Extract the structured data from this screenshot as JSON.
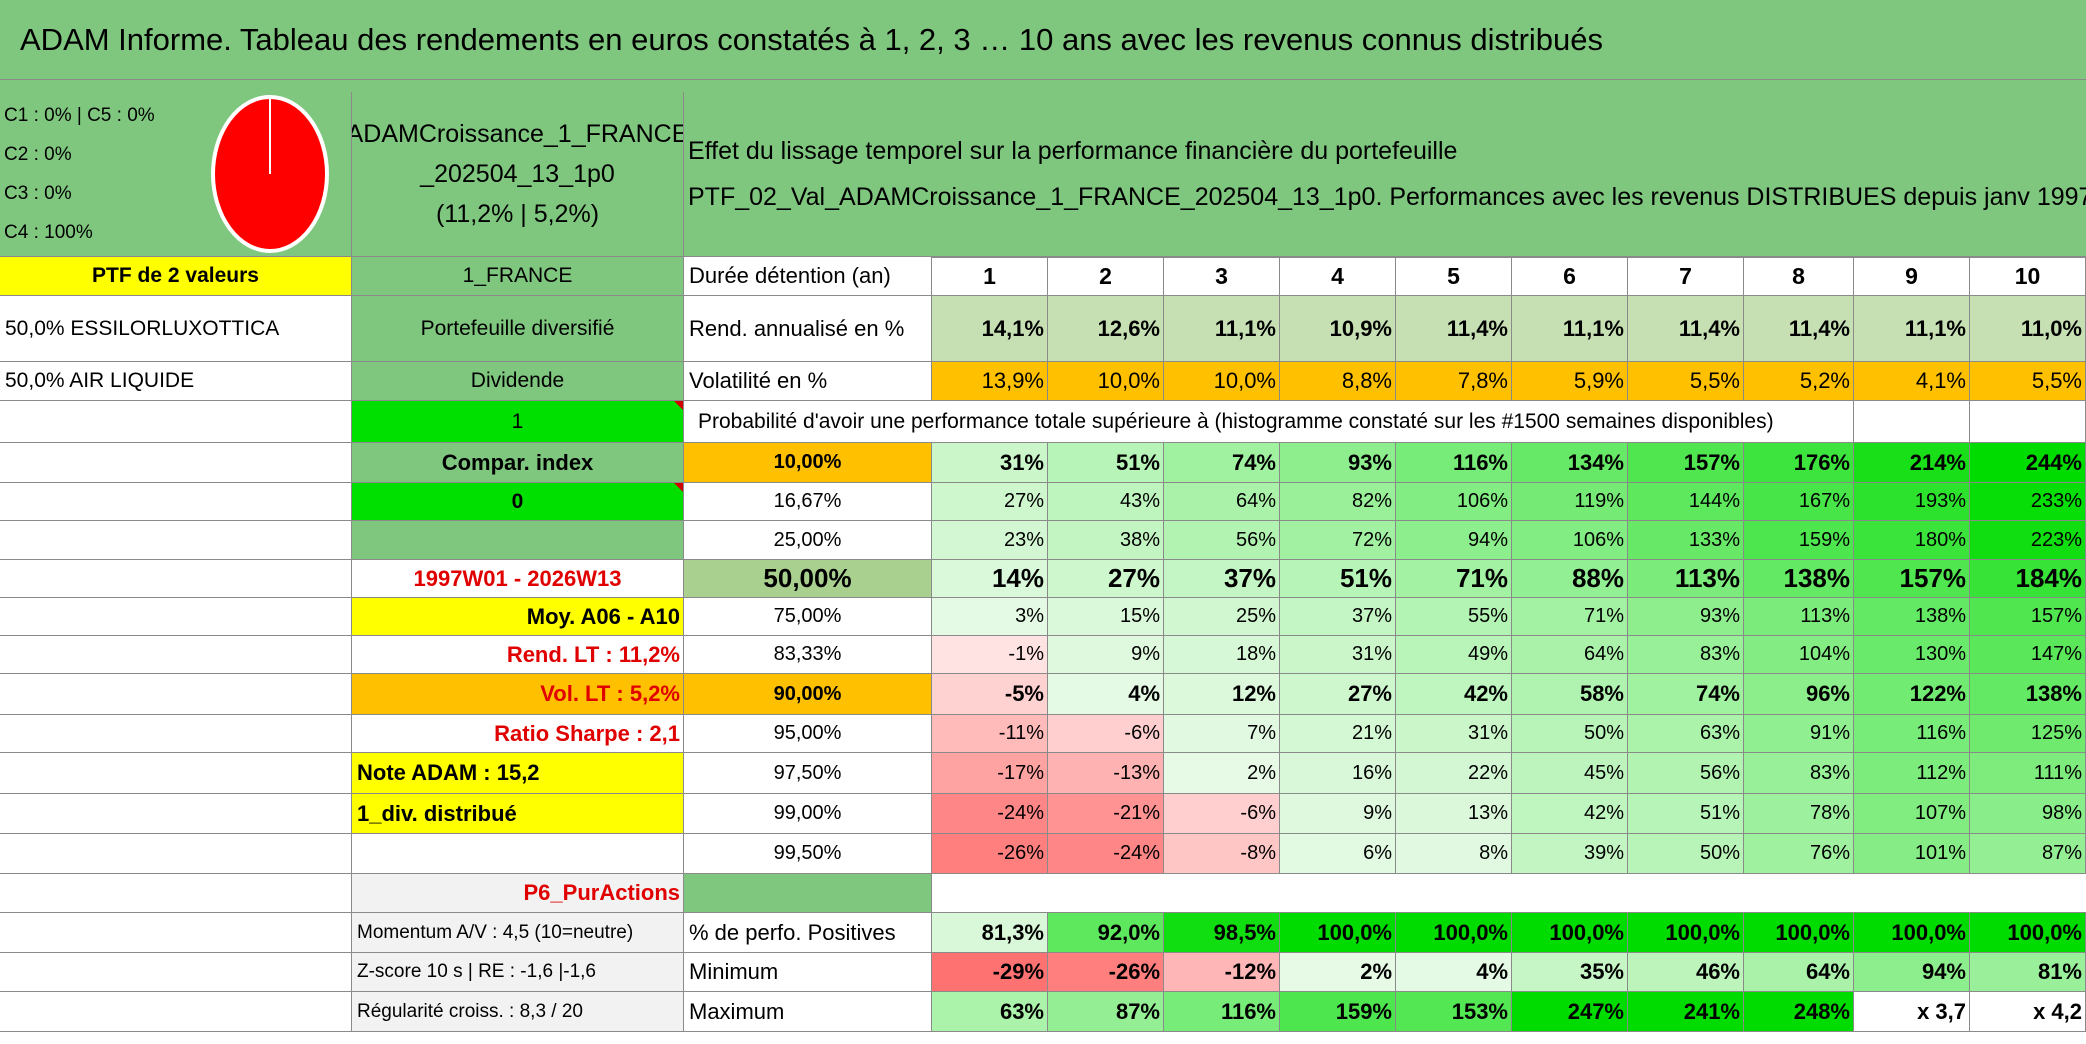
{
  "title": "ADAM Informe. Tableau des rendements en euros constatés à 1, 2, 3 … 10 ans avec les revenus connus distribués",
  "allocation": {
    "lines": [
      "C1 : 0% | C5 : 0%",
      "C2 : 0%",
      "C3 : 0%",
      "C4 : 100%"
    ],
    "pie_color": "#ff0000"
  },
  "portfolio": {
    "name_lines": [
      "ADAMCroissance_1_FRANCE",
      "_202504_13_1p0",
      "(11,2% | 5,2%)"
    ],
    "description_lines": [
      "Effet du lissage temporel sur la performance financière du portefeuille",
      "PTF_02_Val_ADAMCroissance_1_FRANCE_202504_13_1p0. Performances avec les revenus DISTRIBUES depuis janv 1997."
    ]
  },
  "left": {
    "ptf_label": "PTF de 2 valeurs",
    "holdings": [
      "50,0% ESSILORLUXOTTICA",
      "50,0% AIR LIQUIDE"
    ]
  },
  "mid": {
    "country": "1_FRANCE",
    "diversified": "Portefeuille diversifié",
    "dividend": "Dividende",
    "dividend_value": "1",
    "compar_index": "Compar. index",
    "compar_value": "0",
    "period": "1997W01 - 2026W13",
    "moy": "Moy. A06 - A10",
    "rend_lt": "Rend. LT : 11,2%",
    "vol_lt": "Vol. LT : 5,2%",
    "sharpe": "Ratio Sharpe : 2,1",
    "note": "Note ADAM : 15,2",
    "div": "1_div. distribué",
    "category": "P6_PurActions",
    "momentum": "Momentum A/V : 4,5 (10=neutre)",
    "zscore": "Z-score 10 s | RE : -1,6 |-1,6",
    "regularity": "Régularité croiss. : 8,3 / 20"
  },
  "table": {
    "duration_label": "Durée détention (an)",
    "years": [
      "1",
      "2",
      "3",
      "4",
      "5",
      "6",
      "7",
      "8",
      "9",
      "10"
    ],
    "rend_label": "Rend. annualisé en %",
    "rend": [
      "14,1%",
      "12,6%",
      "11,1%",
      "10,9%",
      "11,4%",
      "11,1%",
      "11,4%",
      "11,4%",
      "11,1%",
      "11,0%"
    ],
    "vol_label": "Volatilité en %",
    "vol": [
      "13,9%",
      "10,0%",
      "10,0%",
      "8,8%",
      "7,8%",
      "5,9%",
      "5,5%",
      "5,2%",
      "4,1%",
      "5,5%"
    ],
    "prob_header": "Probabilité d'avoir une performance totale supérieure à (histogramme constaté sur les #1500 semaines disponibles)",
    "prob_rows": [
      {
        "label": "10,00%",
        "values": [
          "31%",
          "51%",
          "74%",
          "93%",
          "116%",
          "134%",
          "157%",
          "176%",
          "214%",
          "244%"
        ]
      },
      {
        "label": "16,67%",
        "values": [
          "27%",
          "43%",
          "64%",
          "82%",
          "106%",
          "119%",
          "144%",
          "167%",
          "193%",
          "233%"
        ]
      },
      {
        "label": "25,00%",
        "values": [
          "23%",
          "38%",
          "56%",
          "72%",
          "94%",
          "106%",
          "133%",
          "159%",
          "180%",
          "223%"
        ]
      },
      {
        "label": "50,00%",
        "values": [
          "14%",
          "27%",
          "37%",
          "51%",
          "71%",
          "88%",
          "113%",
          "138%",
          "157%",
          "184%"
        ]
      },
      {
        "label": "75,00%",
        "values": [
          "3%",
          "15%",
          "25%",
          "37%",
          "55%",
          "71%",
          "93%",
          "113%",
          "138%",
          "157%"
        ]
      },
      {
        "label": "83,33%",
        "values": [
          "-1%",
          "9%",
          "18%",
          "31%",
          "49%",
          "64%",
          "83%",
          "104%",
          "130%",
          "147%"
        ]
      },
      {
        "label": "90,00%",
        "values": [
          "-5%",
          "4%",
          "12%",
          "27%",
          "42%",
          "58%",
          "74%",
          "96%",
          "122%",
          "138%"
        ]
      },
      {
        "label": "95,00%",
        "values": [
          "-11%",
          "-6%",
          "7%",
          "21%",
          "31%",
          "50%",
          "63%",
          "91%",
          "116%",
          "125%"
        ]
      },
      {
        "label": "97,50%",
        "values": [
          "-17%",
          "-13%",
          "2%",
          "16%",
          "22%",
          "45%",
          "56%",
          "83%",
          "112%",
          "111%"
        ]
      },
      {
        "label": "99,00%",
        "values": [
          "-24%",
          "-21%",
          "-6%",
          "9%",
          "13%",
          "42%",
          "51%",
          "78%",
          "107%",
          "98%"
        ]
      },
      {
        "label": "99,50%",
        "values": [
          "-26%",
          "-24%",
          "-8%",
          "6%",
          "8%",
          "39%",
          "50%",
          "76%",
          "101%",
          "87%"
        ]
      }
    ],
    "pos_label": "% de perfo. Positives",
    "pos": [
      "81,3%",
      "92,0%",
      "98,5%",
      "100,0%",
      "100,0%",
      "100,0%",
      "100,0%",
      "100,0%",
      "100,0%",
      "100,0%"
    ],
    "min_label": "Minimum",
    "min": [
      "-29%",
      "-26%",
      "-12%",
      "2%",
      "4%",
      "35%",
      "46%",
      "64%",
      "94%",
      "81%"
    ],
    "max_label": "Maximum",
    "max": [
      "63%",
      "87%",
      "116%",
      "159%",
      "153%",
      "247%",
      "241%",
      "248%",
      "x 3,7",
      "x 4,2"
    ]
  }
}
